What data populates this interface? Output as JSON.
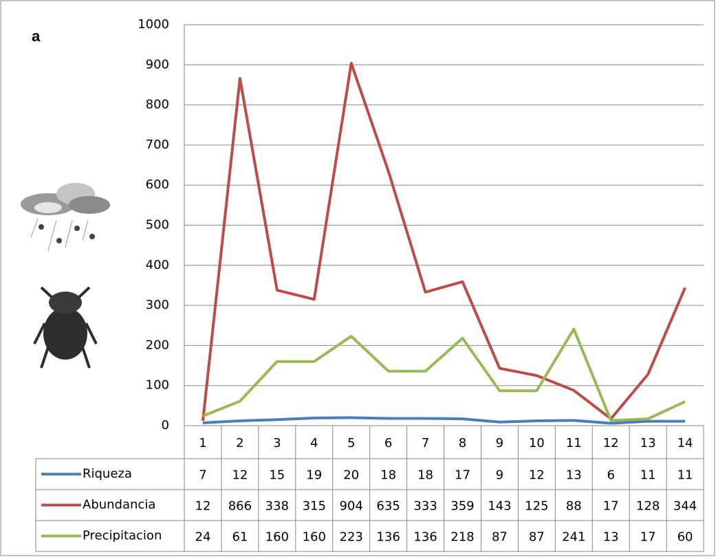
{
  "chart_data": {
    "type": "line",
    "label": "a",
    "categories": [
      "1",
      "2",
      "3",
      "4",
      "5",
      "6",
      "7",
      "8",
      "9",
      "10",
      "11",
      "12",
      "13",
      "14"
    ],
    "series": [
      {
        "name": "Riqueza",
        "color": "#4a7ebb",
        "values": [
          7,
          12,
          15,
          19,
          20,
          18,
          18,
          17,
          9,
          12,
          13,
          6,
          11,
          11
        ]
      },
      {
        "name": "Abundancia",
        "color": "#be4b48",
        "values": [
          12,
          866,
          338,
          315,
          904,
          635,
          333,
          359,
          143,
          125,
          88,
          17,
          128,
          344
        ]
      },
      {
        "name": "Precipitacion",
        "color": "#98b954",
        "values": [
          24,
          61,
          160,
          160,
          223,
          136,
          136,
          218,
          87,
          87,
          241,
          13,
          17,
          60
        ]
      }
    ],
    "ylim": [
      0,
      1000
    ],
    "yticks": [
      0,
      100,
      200,
      300,
      400,
      500,
      600,
      700,
      800,
      900,
      1000
    ],
    "grid": true
  }
}
